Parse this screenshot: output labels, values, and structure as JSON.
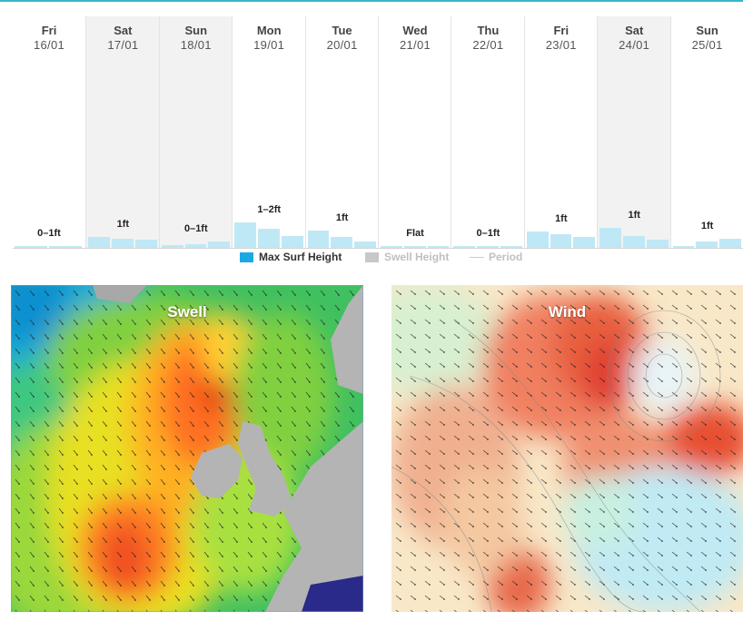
{
  "forecast": {
    "days": [
      {
        "day": "Fri",
        "date": "16/01",
        "height": "0–1ft",
        "shaded": false,
        "bars": [
          0.01,
          0.01
        ]
      },
      {
        "day": "Sat",
        "date": "17/01",
        "height": "1ft",
        "shaded": true,
        "bars": [
          0.4,
          0.35,
          0.3
        ]
      },
      {
        "day": "Sun",
        "date": "18/01",
        "height": "0–1ft",
        "shaded": true,
        "bars": [
          0.1,
          0.12,
          0.25
        ]
      },
      {
        "day": "Mon",
        "date": "19/01",
        "height": "1–2ft",
        "shaded": false,
        "bars": [
          0.95,
          0.7,
          0.45
        ]
      },
      {
        "day": "Tue",
        "date": "20/01",
        "height": "1ft",
        "shaded": false,
        "bars": [
          0.65,
          0.4,
          0.25
        ]
      },
      {
        "day": "Wed",
        "date": "21/01",
        "height": "Flat",
        "shaded": false,
        "bars": [
          0.05,
          0.04,
          0.03
        ]
      },
      {
        "day": "Thu",
        "date": "22/01",
        "height": "0–1ft",
        "shaded": false,
        "bars": [
          0.04,
          0.05,
          0.05
        ]
      },
      {
        "day": "Fri",
        "date": "23/01",
        "height": "1ft",
        "shaded": false,
        "bars": [
          0.6,
          0.5,
          0.4
        ]
      },
      {
        "day": "Sat",
        "date": "24/01",
        "height": "1ft",
        "shaded": true,
        "bars": [
          0.75,
          0.45,
          0.3
        ]
      },
      {
        "day": "Sun",
        "date": "25/01",
        "height": "1ft",
        "shaded": false,
        "bars": [
          0.05,
          0.25,
          0.35
        ]
      }
    ]
  },
  "legend": {
    "max_surf": {
      "label": "Max Surf Height",
      "color": "#1ba9e6"
    },
    "swell": {
      "label": "Swell Height",
      "color": "#c8c8c8"
    },
    "period": {
      "label": "Period",
      "color": "#cccccc"
    }
  },
  "maps": {
    "swell": {
      "title": "Swell"
    },
    "wind": {
      "title": "Wind"
    }
  }
}
